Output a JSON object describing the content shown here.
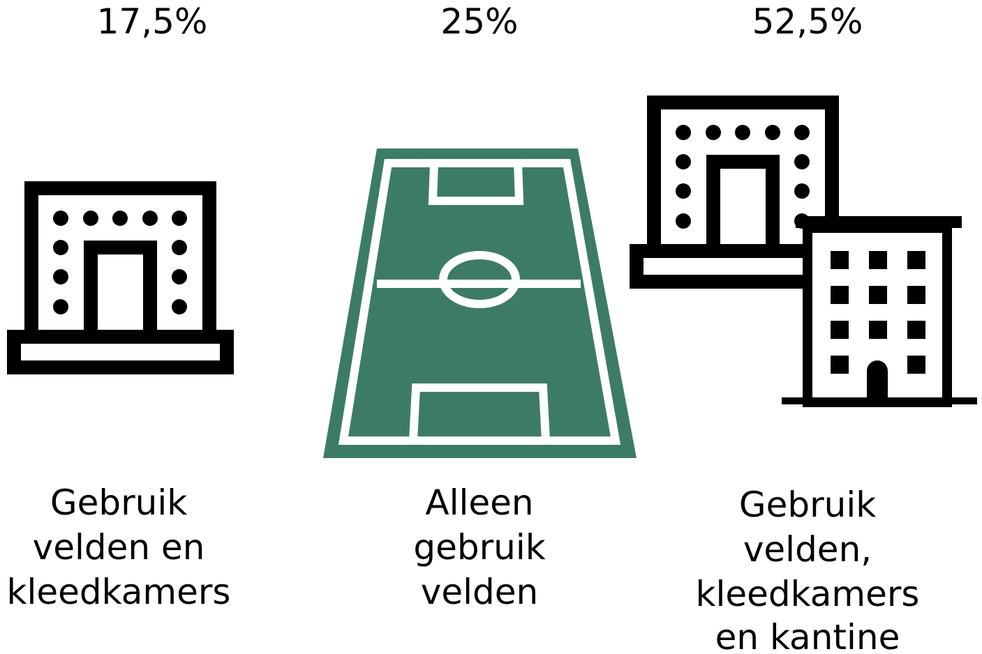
{
  "items": [
    {
      "percentage": "17,5%",
      "label": [
        "Gebruik",
        "velden en",
        "kleedkamers"
      ]
    },
    {
      "percentage": "25%",
      "label": [
        "Alleen",
        "gebruik",
        "velden"
      ]
    },
    {
      "percentage": "52,5%",
      "label": [
        "Gebruik",
        "velden,",
        "kleedkamers",
        "en kantine"
      ]
    }
  ]
}
